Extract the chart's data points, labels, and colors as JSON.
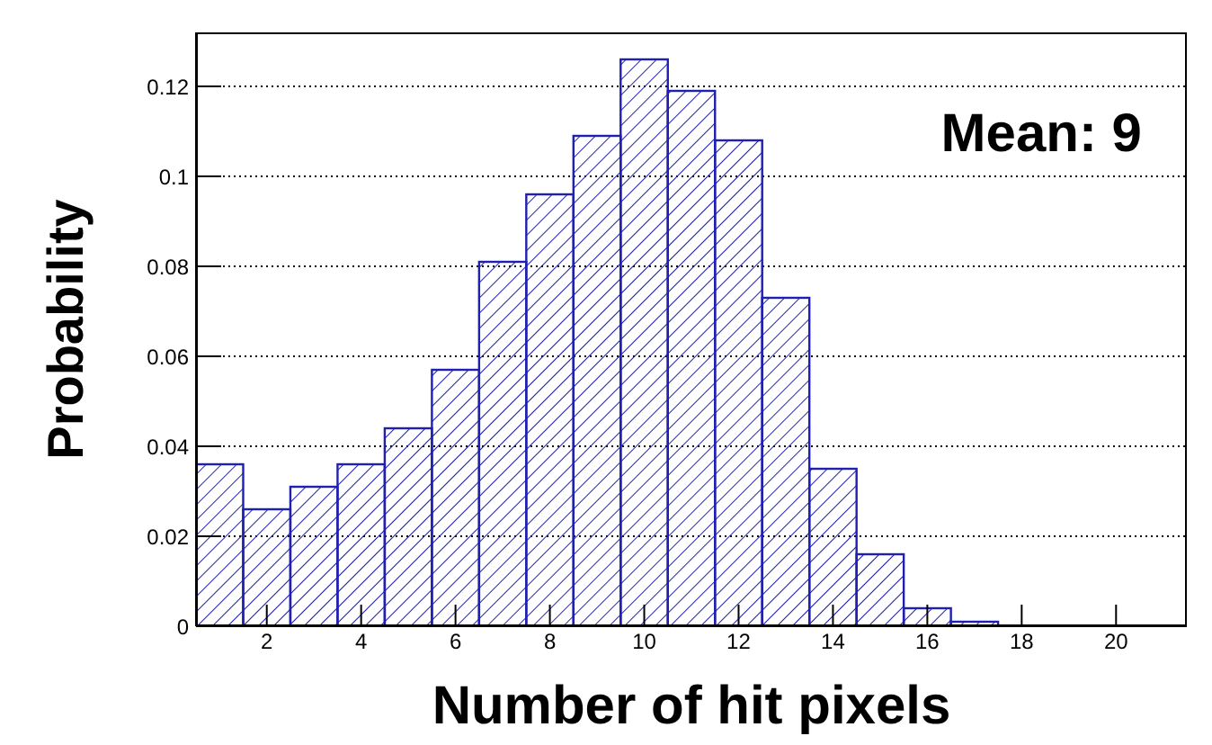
{
  "chart_data": {
    "type": "histogram",
    "xlabel": "Number of hit pixels",
    "ylabel": "Probability",
    "annotations": [
      "Mean: 9"
    ],
    "bins": [
      0.5,
      1.5,
      2.5,
      3.5,
      4.5,
      5.5,
      6.5,
      7.5,
      8.5,
      9.5,
      10.5,
      11.5,
      12.5,
      13.5,
      14.5,
      15.5,
      16.5,
      17.5,
      18.5,
      19.5,
      20.5,
      21.5
    ],
    "values": [
      0.036,
      0.026,
      0.031,
      0.036,
      0.044,
      0.057,
      0.081,
      0.096,
      0.109,
      0.126,
      0.119,
      0.108,
      0.073,
      0.035,
      0.016,
      0.004,
      0.001,
      0,
      0,
      0,
      0
    ],
    "color": "#2020b0",
    "xlim": [
      0.5,
      21.5
    ],
    "xticks": [
      2,
      4,
      6,
      8,
      10,
      12,
      14,
      16,
      18,
      20
    ],
    "ylim": [
      0,
      0.132
    ],
    "yticks": [
      0,
      0.02,
      0.04,
      0.06,
      0.08,
      0.1,
      0.12
    ],
    "grid": "y"
  }
}
